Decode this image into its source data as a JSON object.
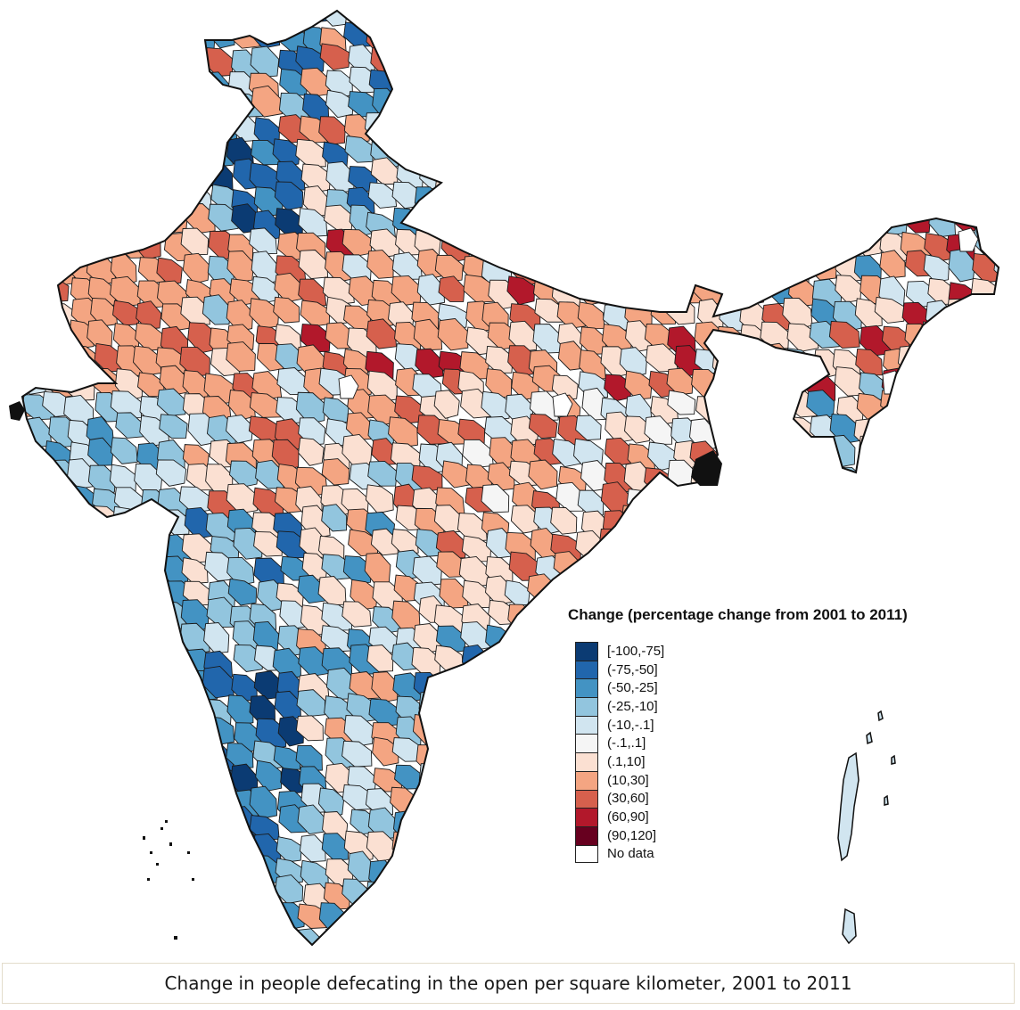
{
  "map": {
    "region": "India districts",
    "legend_title": "Change (percentage change from 2001 to 2011)",
    "legend": [
      {
        "label": "[-100,-75]",
        "color": "#0b3b73"
      },
      {
        "label": "(-75,-50]",
        "color": "#2166ac"
      },
      {
        "label": "(-50,-25]",
        "color": "#4393c3"
      },
      {
        "label": "(-25,-10]",
        "color": "#92c5de"
      },
      {
        "label": "(-10,-.1]",
        "color": "#d1e5f0"
      },
      {
        "label": "(-.1,.1]",
        "color": "#f5f5f5"
      },
      {
        "label": "(.1,10]",
        "color": "#fbe0d2"
      },
      {
        "label": "(10,30]",
        "color": "#f4a582"
      },
      {
        "label": "(30,60]",
        "color": "#d6604d"
      },
      {
        "label": "(60,90]",
        "color": "#b2182b"
      },
      {
        "label": "(90,120]",
        "color": "#67001f"
      },
      {
        "label": "No data",
        "color": "#ffffff"
      }
    ]
  },
  "caption": "Change in people defecating in the open per square kilometer, 2001 to 2011"
}
